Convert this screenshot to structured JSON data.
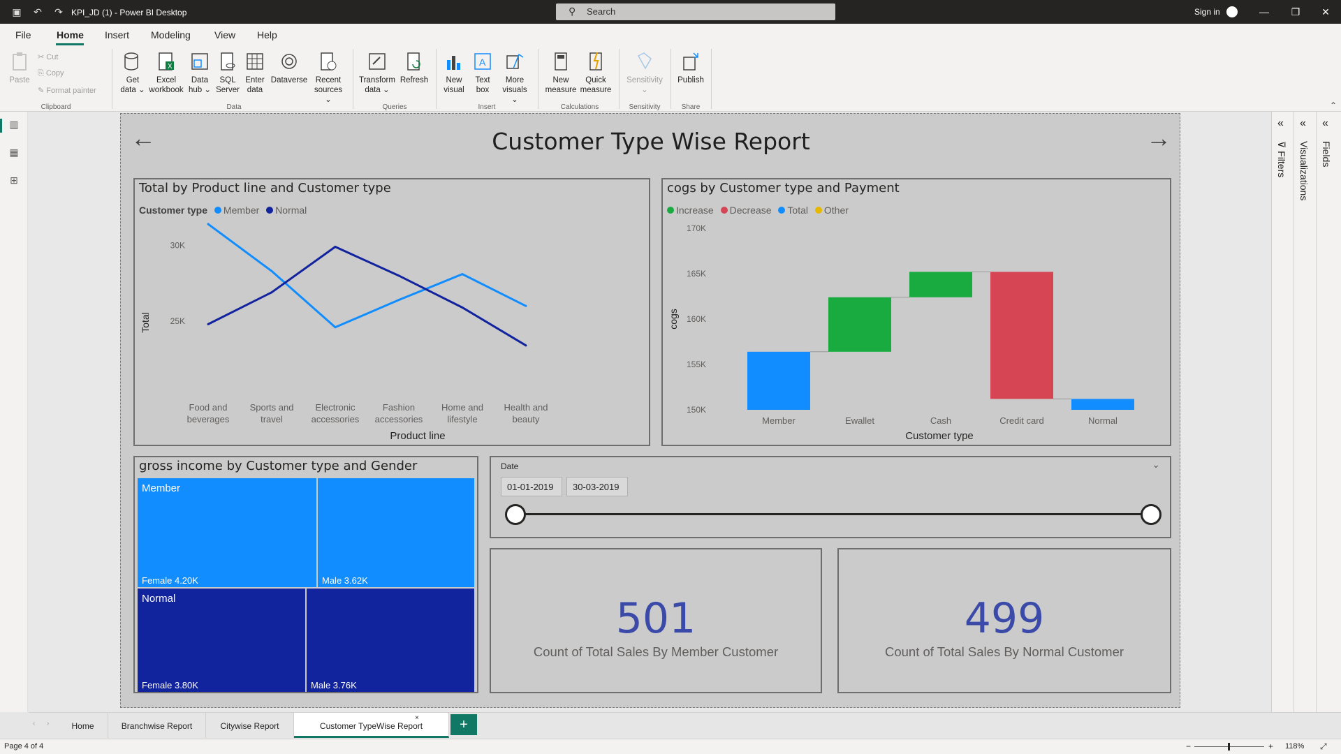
{
  "window": {
    "title": "KPI_JD (1) - Power BI Desktop",
    "search_placeholder": "Search",
    "signin": "Sign in"
  },
  "menu": [
    "File",
    "Home",
    "Insert",
    "Modeling",
    "View",
    "Help"
  ],
  "ribbon": {
    "clipboard": {
      "paste": "Paste",
      "cut": "Cut",
      "copy": "Copy",
      "format_painter": "Format painter",
      "group": "Clipboard"
    },
    "data": {
      "get_data": "Get",
      "get_data2": "data ⌄",
      "excel": "Excel",
      "excel2": "workbook",
      "hub": "Data",
      "hub2": "hub ⌄",
      "sql": "SQL",
      "sql2": "Server",
      "enter": "Enter",
      "enter2": "data",
      "dataverse": "Dataverse",
      "recent": "Recent",
      "recent2": "sources ⌄",
      "group": "Data"
    },
    "queries": {
      "transform": "Transform",
      "transform2": "data ⌄",
      "refresh": "Refresh",
      "group": "Queries"
    },
    "insert": {
      "new_visual": "New",
      "new_visual2": "visual",
      "text_box": "Text",
      "text_box2": "box",
      "more": "More",
      "more2": "visuals ⌄",
      "group": "Insert"
    },
    "calc": {
      "new_measure": "New",
      "new_measure2": "measure",
      "quick": "Quick",
      "quick2": "measure",
      "group": "Calculations"
    },
    "sensitivity": {
      "label": "Sensitivity",
      "label2": "⌄",
      "group": "Sensitivity"
    },
    "share": {
      "publish": "Publish",
      "group": "Share"
    }
  },
  "report": {
    "title": "Customer Type Wise Report",
    "line_chart": {
      "title": "Total by Product line and Customer type",
      "legend_label": "Customer type",
      "xlabel": "Product line",
      "ylabel": "Total"
    },
    "waterfall": {
      "title": "cogs by Customer type and Payment",
      "xlabel": "Customer type",
      "ylabel": "cogs",
      "legend": [
        "Increase",
        "Decrease",
        "Total",
        "Other"
      ]
    },
    "treemap": {
      "title": "gross income by Customer type and Gender",
      "cells": [
        {
          "group": "Member",
          "label": "Female 4.20K"
        },
        {
          "group": "",
          "label": "Male 3.62K"
        },
        {
          "group": "Normal",
          "label": "Female 3.80K"
        },
        {
          "group": "",
          "label": "Male 3.76K"
        }
      ]
    },
    "slicer": {
      "label": "Date",
      "start": "01-01-2019",
      "end": "30-03-2019"
    },
    "card_member": {
      "value": "501",
      "label": "Count of Total Sales By Member Customer"
    },
    "card_normal": {
      "value": "499",
      "label": "Count of Total Sales By Normal Customer"
    }
  },
  "panes": {
    "filters": "Filters",
    "visualizations": "Visualizations",
    "fields": "Fields"
  },
  "tabs": [
    "Home",
    "Branchwise Report",
    "Citywise Report",
    "Customer TypeWise Report"
  ],
  "status": {
    "page": "Page 4 of 4",
    "zoom": "118%"
  },
  "chart_data": [
    {
      "type": "line",
      "title": "Total by Product line and Customer type",
      "xlabel": "Product line",
      "ylabel": "Total",
      "categories": [
        "Food and beverages",
        "Sports and travel",
        "Electronic accessories",
        "Fashion accessories",
        "Home and lifestyle",
        "Health and beauty"
      ],
      "series": [
        {
          "name": "Member",
          "color": "#118dff",
          "values": [
            31400,
            28300,
            24600,
            26400,
            28100,
            26000
          ]
        },
        {
          "name": "Normal",
          "color": "#12239e",
          "values": [
            24800,
            26900,
            29900,
            28000,
            25900,
            23400
          ]
        }
      ],
      "yticks": [
        "25K",
        "30K"
      ],
      "ylim": [
        21000,
        32500
      ]
    },
    {
      "type": "bar",
      "subtype": "waterfall",
      "title": "cogs by Customer type and Payment",
      "xlabel": "Customer type",
      "ylabel": "cogs",
      "categories": [
        "Member",
        "Ewallet",
        "Cash",
        "Credit card",
        "Normal"
      ],
      "steps": [
        {
          "from": 150000,
          "to": 156400,
          "kind": "Total",
          "color": "#118dff"
        },
        {
          "from": 156400,
          "to": 162400,
          "kind": "Increase",
          "color": "#1aab40"
        },
        {
          "from": 162400,
          "to": 165200,
          "kind": "Increase",
          "color": "#1aab40"
        },
        {
          "from": 165200,
          "to": 151200,
          "kind": "Decrease",
          "color": "#d64554"
        },
        {
          "from": 150000,
          "to": 151200,
          "kind": "Total",
          "color": "#118dff"
        }
      ],
      "legend_colors": [
        "#1aab40",
        "#d64554",
        "#118dff",
        "#e6b800"
      ],
      "yticks": [
        "150K",
        "155K",
        "160K",
        "165K",
        "170K"
      ],
      "ylim": [
        150000,
        170000
      ]
    }
  ]
}
